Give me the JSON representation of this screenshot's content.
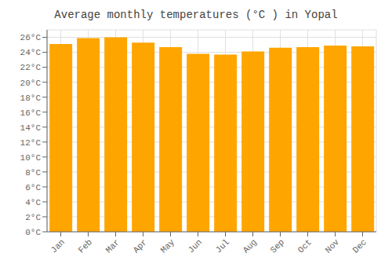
{
  "chart_data": {
    "type": "bar",
    "title": "Average monthly temperatures (°C ) in Yopal",
    "categories": [
      "Jan",
      "Feb",
      "Mar",
      "Apr",
      "May",
      "Jun",
      "Jul",
      "Aug",
      "Sep",
      "Oct",
      "Nov",
      "Dec"
    ],
    "values": [
      25.1,
      25.9,
      26.0,
      25.3,
      24.7,
      23.8,
      23.7,
      24.1,
      24.6,
      24.7,
      24.9,
      24.8
    ],
    "color": "#FFA500",
    "ylim": [
      0,
      27
    ],
    "yticks": [
      {
        "value": 0,
        "label": "0°C"
      },
      {
        "value": 2,
        "label": "2°C"
      },
      {
        "value": 4,
        "label": "4°C"
      },
      {
        "value": 6,
        "label": "6°C"
      },
      {
        "value": 8,
        "label": "8°C"
      },
      {
        "value": 10,
        "label": "10°C"
      },
      {
        "value": 12,
        "label": "12°C"
      },
      {
        "value": 14,
        "label": "14°C"
      },
      {
        "value": 16,
        "label": "16°C"
      },
      {
        "value": 18,
        "label": "18°C"
      },
      {
        "value": 20,
        "label": "20°C"
      },
      {
        "value": 22,
        "label": "22°C"
      },
      {
        "value": 24,
        "label": "24°C"
      },
      {
        "value": 26,
        "label": "26°C"
      }
    ],
    "grid": true
  }
}
